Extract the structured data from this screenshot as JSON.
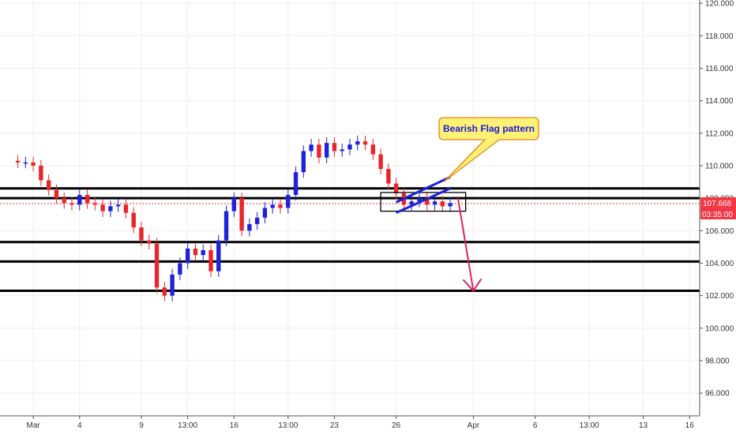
{
  "chart_data": {
    "type": "candlestick",
    "title": "",
    "y_axis": {
      "ticks": [
        "120.000",
        "118.000",
        "116.000",
        "114.000",
        "112.000",
        "110.000",
        "108.000",
        "106.000",
        "104.000",
        "102.000",
        "100.000",
        "98.000",
        "96.000"
      ],
      "tick_values": [
        120,
        118,
        116,
        114,
        112,
        110,
        108,
        106,
        104,
        102,
        100,
        98,
        96
      ],
      "ylim": [
        94.6,
        120.2
      ]
    },
    "x_axis": {
      "ticks": [
        "Mar",
        "4",
        "9",
        "13:00",
        "16",
        "13:00",
        "23",
        "26",
        "Apr",
        "6",
        "13:00",
        "13",
        "16"
      ],
      "tick_index": [
        4,
        10,
        18,
        24,
        30,
        37,
        43,
        51,
        61,
        69,
        76,
        83,
        89
      ],
      "xlim": [
        0,
        90
      ]
    },
    "current_price": {
      "label": "107.668",
      "value": 107.668,
      "color": "#f23645"
    },
    "countdown": {
      "label": "03:35:00"
    },
    "colors": {
      "up": "#1e22d8",
      "down": "#e8252b",
      "grid": "#eeeeee",
      "axis": "#555555"
    },
    "horizontal_levels": [
      108.6,
      108.0,
      105.3,
      104.1,
      102.3
    ],
    "candles_close": [
      110.2,
      110.2,
      110.0,
      109.1,
      108.5,
      108.0,
      107.7,
      107.6,
      108.2,
      107.7,
      107.6,
      107.2,
      107.5,
      107.6,
      107.1,
      106.2,
      105.4,
      105.2,
      102.5,
      102.0,
      103.3,
      104.0,
      104.9,
      104.5,
      104.8,
      103.5,
      105.4,
      107.2,
      108.0,
      106.0,
      106.4,
      106.8,
      107.4,
      107.6,
      107.4,
      108.2,
      109.6,
      110.9,
      111.3,
      110.5,
      111.4,
      110.9,
      111.0,
      111.3,
      111.5,
      111.3,
      110.7,
      109.8,
      108.9,
      108.3,
      107.6,
      107.8,
      108.0,
      107.6,
      107.8,
      107.5,
      107.7
    ],
    "candles_open": [
      110.3,
      110.2,
      110.2,
      110.0,
      109.1,
      108.5,
      108.0,
      107.7,
      107.6,
      108.2,
      107.7,
      107.6,
      107.2,
      107.5,
      107.6,
      107.1,
      106.2,
      105.4,
      105.2,
      102.5,
      102.0,
      103.3,
      104.0,
      104.9,
      104.5,
      104.8,
      103.5,
      105.4,
      107.2,
      108.0,
      106.0,
      106.4,
      106.8,
      107.4,
      107.6,
      107.4,
      108.2,
      109.6,
      110.9,
      111.3,
      110.5,
      111.4,
      110.9,
      111.0,
      111.3,
      111.5,
      111.3,
      110.7,
      109.8,
      108.9,
      108.3,
      107.6,
      107.8,
      108.0,
      107.6,
      107.8,
      107.5
    ],
    "pattern": {
      "flag_upper": {
        "from": [
          51,
          107.75
        ],
        "to": [
          58,
          109.3
        ]
      },
      "flag_lower": {
        "from": [
          51,
          107.1
        ],
        "to": [
          58,
          108.6
        ]
      },
      "box": {
        "from": [
          49,
          108.35
        ],
        "to": [
          60,
          107.2
        ]
      },
      "arrow": {
        "from": [
          59,
          108.0
        ],
        "to": [
          61,
          102.3
        ]
      }
    },
    "annotation": {
      "text": "Bearish Flag pattern",
      "fill": "#fff176",
      "border": "#e0871a"
    }
  }
}
